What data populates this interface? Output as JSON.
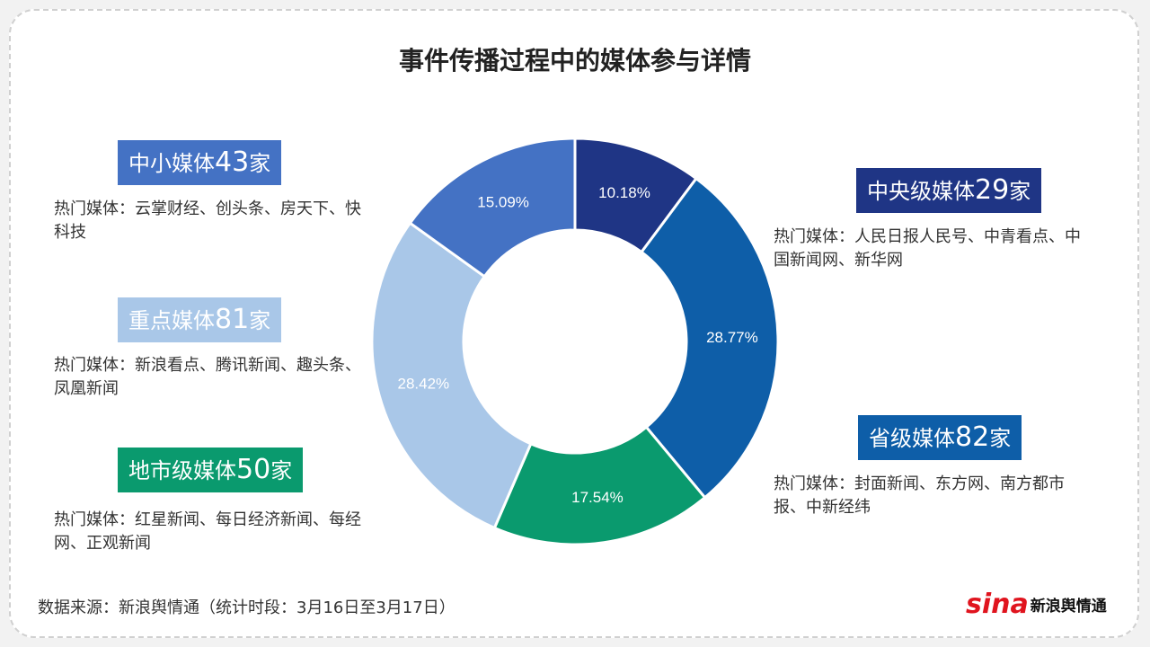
{
  "title": "事件传播过程中的媒体参与详情",
  "groups": {
    "small": {
      "prefix": "中小媒体",
      "count": "43",
      "suffix": "家",
      "desc": "热门媒体：云掌财经、创头条、房天下、快科技"
    },
    "key": {
      "prefix": "重点媒体",
      "count": "81",
      "suffix": "家",
      "desc": "热门媒体：新浪看点、腾讯新闻、趣头条、凤凰新闻"
    },
    "city": {
      "prefix": "地市级媒体",
      "count": "50",
      "suffix": "家",
      "desc": "热门媒体：红星新闻、每日经济新闻、每经网、正观新闻"
    },
    "central": {
      "prefix": "中央级媒体",
      "count": "29",
      "suffix": "家",
      "desc": "热门媒体：人民日报人民号、中青看点、中国新闻网、新华网"
    },
    "province": {
      "prefix": "省级媒体",
      "count": "82",
      "suffix": "家",
      "desc": "热门媒体：封面新闻、东方网、南方都市报、中新经纬"
    }
  },
  "chart_data": {
    "type": "pie",
    "variant": "donut",
    "title": "事件传播过程中的媒体参与详情",
    "categories": [
      "中央级媒体",
      "省级媒体",
      "地市级媒体",
      "重点媒体",
      "中小媒体"
    ],
    "values": [
      10.18,
      28.77,
      17.54,
      28.42,
      15.09
    ],
    "labels": [
      "10.18%",
      "28.77%",
      "17.54%",
      "28.42%",
      "15.09%"
    ],
    "counts": [
      29,
      82,
      50,
      81,
      43
    ],
    "colors": [
      "#1f3585",
      "#0e5ea8",
      "#0a9a6e",
      "#a9c7e8",
      "#4472c4"
    ]
  },
  "source": "数据来源：新浪舆情通（统计时段：3月16日至3月17日）",
  "logo": {
    "mark": "sina",
    "text": "新浪舆情通"
  }
}
